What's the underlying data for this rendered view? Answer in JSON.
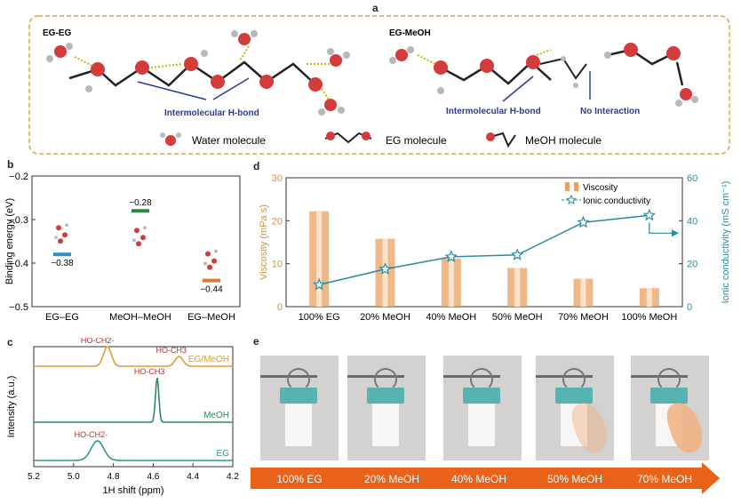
{
  "panels": {
    "a": "a",
    "b": "b",
    "c": "c",
    "d": "d",
    "e": "e"
  },
  "panel_a": {
    "left_title": "EG-EG",
    "right_title": "EG-MeOH",
    "left_arrow_label": "Intermolecular H-bond",
    "right_arrow_label": "Intermolecular H-bond",
    "no_interaction_label": "No Interaction",
    "legend": {
      "water": "Water molecule",
      "eg": "EG molecule",
      "meoh": "MeOH molecule"
    },
    "colors": {
      "oxygen": "#d43c3c",
      "hydrogen": "#b8b8b8",
      "carbon": "#333333",
      "arrow": "#2a3a9a",
      "border": "#d9a441",
      "hbond": "#c9b400"
    }
  },
  "chart_data": [
    {
      "panel": "b",
      "type": "scatter",
      "ylabel": "Binding energy (eV)",
      "ylim": [
        -0.5,
        -0.2
      ],
      "yticks": [
        "-0.2",
        "-0.3",
        "-0.4",
        "-0.5"
      ],
      "categories": [
        "EG–EG",
        "MeOH–MeOH",
        "EG–MeOH"
      ],
      "values": [
        -0.38,
        -0.28,
        -0.44
      ],
      "value_labels": [
        "−0.38",
        "−0.28",
        "−0.44"
      ],
      "colors": [
        "#2f8fc6",
        "#2a8a4a",
        "#e07a30"
      ]
    },
    {
      "panel": "c",
      "type": "line",
      "xlabel": "1H shift (ppm)",
      "ylabel": "Intensity (a.u.)",
      "xlim": [
        5.2,
        4.2
      ],
      "xticks": [
        "5.2",
        "5.0",
        "4.8",
        "4.6",
        "4.4",
        "4.2"
      ],
      "series": [
        {
          "name": "EG/MeOH",
          "color": "#e09a3a",
          "peaks": [
            {
              "x": 4.83,
              "h": 0.8
            },
            {
              "x": 4.47,
              "h": 0.4
            }
          ],
          "labels": [
            "HO-CH2-",
            "HO-CH3"
          ]
        },
        {
          "name": "MeOH",
          "color": "#2e8a5a",
          "peaks": [
            {
              "x": 4.58,
              "h": 1.0
            }
          ],
          "labels": [
            "HO-CH3"
          ]
        },
        {
          "name": "EG",
          "color": "#2e9a8a",
          "peaks": [
            {
              "x": 4.88,
              "h": 0.55
            }
          ],
          "labels": [
            "HO-CH2-"
          ]
        }
      ]
    },
    {
      "panel": "d",
      "type": "bar",
      "categories": [
        "100% EG",
        "20% MeOH",
        "40% MeOH",
        "50% MeOH",
        "70% MeOH",
        "100% MeOH"
      ],
      "series": [
        {
          "name": "Viscosity",
          "values": [
            22.2,
            15.8,
            11.2,
            9.0,
            6.5,
            4.3
          ],
          "color": "#e8a060"
        },
        {
          "name": "Ionic conductivity",
          "values": [
            10.2,
            17.5,
            23.2,
            24.1,
            39.2,
            42.5
          ],
          "color": "#2a8aa0"
        }
      ],
      "ylabel_left": "Viscosity (mPa s)",
      "ylabel_right": "Ionic conductivity (mS cm⁻¹)",
      "ylim_left": [
        0,
        30
      ],
      "ylim_right": [
        0,
        60
      ],
      "yticks_left": [
        "0",
        "10",
        "20",
        "30"
      ],
      "yticks_right": [
        "0",
        "20",
        "40",
        "60"
      ],
      "legend_placement": "top-right"
    }
  ],
  "panel_e": {
    "labels": [
      "100% EG",
      "20% MeOH",
      "40% MeOH",
      "50% MeOH",
      "70% MeOH"
    ],
    "arrow_color": "#e8621a"
  }
}
